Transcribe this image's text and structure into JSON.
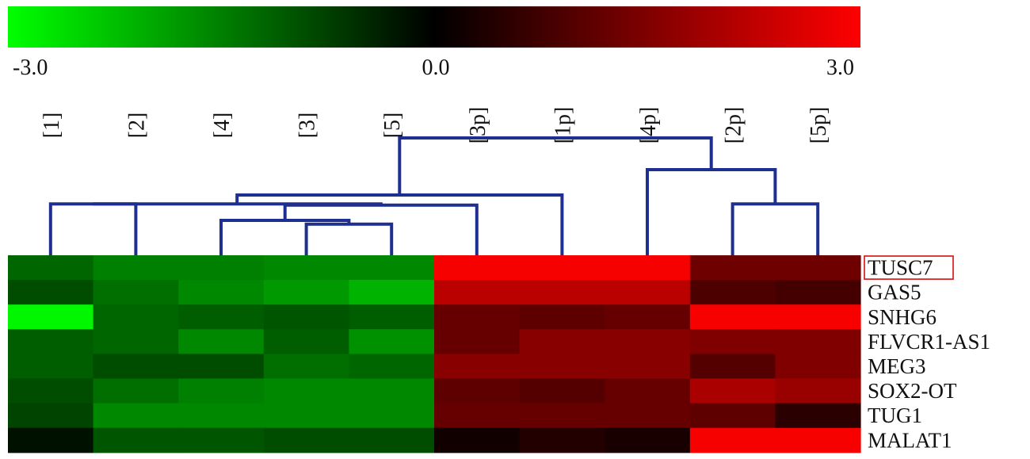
{
  "chart_data": {
    "type": "heatmap",
    "color_scale": {
      "min": -3.0,
      "mid": 0.0,
      "max": 3.0,
      "min_label": "-3.0",
      "mid_label": "0.0",
      "max_label": "3.0",
      "low_color": "#00ff00",
      "mid_color": "#000000",
      "high_color": "#ff0000"
    },
    "columns": [
      "[1]",
      "[2]",
      "[4]",
      "[3]",
      "[5]",
      "[3p]",
      "[1p]",
      "[4p]",
      "[2p]",
      "[5p]"
    ],
    "rows": [
      "TUSC7",
      "GAS5",
      "SNHG6",
      "FLVCR1-AS1",
      "MEG3",
      "SOX2-OT",
      "TUG1",
      "MALAT1"
    ],
    "highlighted_row": "TUSC7",
    "values": [
      [
        -1.2,
        -1.5,
        -1.5,
        -1.6,
        -1.6,
        2.9,
        2.9,
        2.9,
        1.3,
        1.3
      ],
      [
        -0.9,
        -1.3,
        -1.6,
        -1.8,
        -2.1,
        2.2,
        2.2,
        2.2,
        0.9,
        0.8
      ],
      [
        -2.9,
        -1.2,
        -1.1,
        -1.0,
        -1.1,
        1.2,
        1.1,
        1.2,
        2.9,
        2.9
      ],
      [
        -1.1,
        -1.2,
        -1.6,
        -1.1,
        -1.7,
        1.2,
        1.6,
        1.6,
        1.5,
        1.5
      ],
      [
        -1.1,
        -0.9,
        -0.9,
        -1.3,
        -1.2,
        1.6,
        1.6,
        1.6,
        1.0,
        1.5
      ],
      [
        -0.9,
        -1.3,
        -1.5,
        -1.6,
        -1.6,
        1.1,
        1.0,
        1.2,
        2.0,
        1.8
      ],
      [
        -0.8,
        -1.6,
        -1.6,
        -1.6,
        -1.6,
        1.2,
        1.2,
        1.2,
        1.1,
        0.5
      ],
      [
        -0.2,
        -1.0,
        -1.0,
        -0.9,
        -0.9,
        0.2,
        0.4,
        0.3,
        2.9,
        2.9
      ]
    ],
    "column_dendrogram": [
      {
        "left": 0,
        "right": 1,
        "height": 0.28
      },
      {
        "left": 1,
        "right": 2,
        "height": 0.28
      },
      {
        "left": 2,
        "right": 3,
        "height": 0.15
      },
      {
        "left": 3,
        "right": 4,
        "height": 0.12
      },
      {
        "left": 4,
        "right": 5,
        "height": 0.27
      },
      {
        "left": 5,
        "right": 6,
        "height": 0.35
      },
      {
        "left": 6,
        "right": 7,
        "height": 0.8
      },
      {
        "left": 7,
        "right": 8,
        "height": 0.55
      },
      {
        "left": 8,
        "right": 9,
        "height": 0.28
      }
    ]
  }
}
